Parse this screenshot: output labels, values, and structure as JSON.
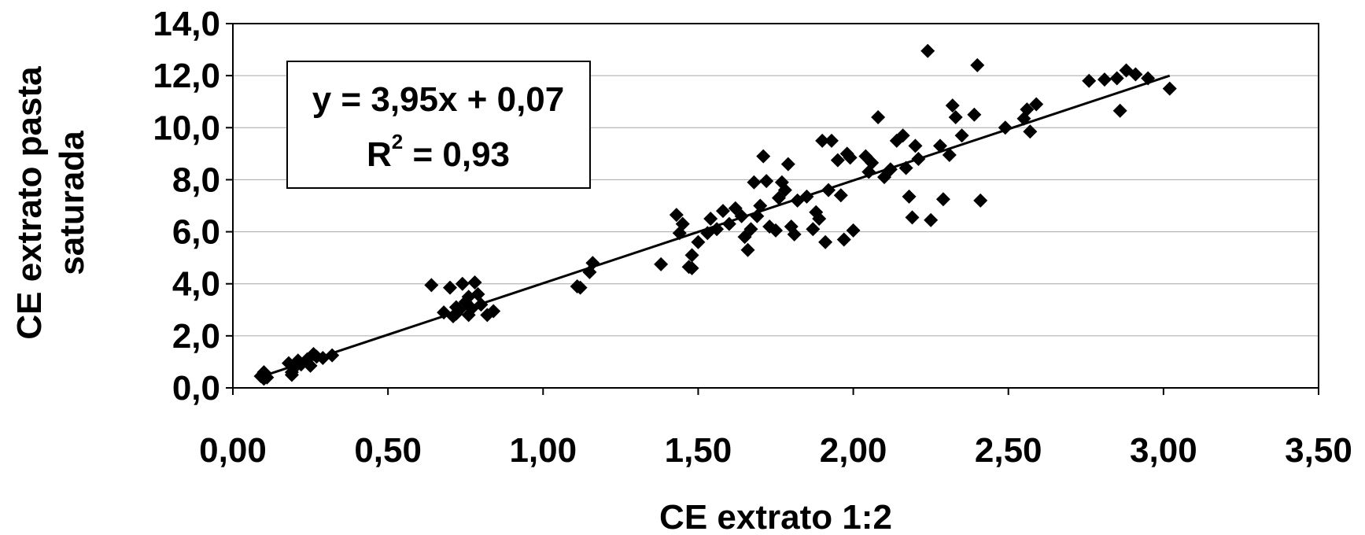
{
  "chart_data": {
    "type": "scatter",
    "xlabel": "CE extrato 1:2",
    "ylabel_lines": [
      "CE extrato pasta",
      "saturada"
    ],
    "xlim": [
      0,
      3.5
    ],
    "ylim": [
      0,
      14
    ],
    "x_ticks": [
      "0,00",
      "0,50",
      "1,00",
      "1,50",
      "2,00",
      "2,50",
      "3,00",
      "3,50"
    ],
    "y_ticks": [
      "0,0",
      "2,0",
      "4,0",
      "6,0",
      "8,0",
      "10,0",
      "12,0",
      "14,0"
    ],
    "grid": "horizontal",
    "marker": "diamond",
    "colors": {
      "points": "#000000",
      "trendline": "#000000",
      "grid": "#a6a6a6"
    },
    "annotation": {
      "equation": "y = 3,95x + 0,07",
      "r2_label": "R",
      "r2_exponent": "2",
      "r2_value": " = 0,93"
    },
    "trendline": {
      "slope": 3.95,
      "intercept": 0.07,
      "x_range": [
        0.09,
        3.02
      ]
    },
    "series": [
      {
        "points": [
          [
            0.09,
            0.45
          ],
          [
            0.1,
            0.55
          ],
          [
            0.1,
            0.35
          ],
          [
            0.11,
            0.4
          ],
          [
            0.1,
            0.6
          ],
          [
            0.18,
            0.95
          ],
          [
            0.19,
            0.6
          ],
          [
            0.2,
            0.8
          ],
          [
            0.21,
            1.05
          ],
          [
            0.22,
            0.9
          ],
          [
            0.24,
            1.1
          ],
          [
            0.25,
            0.85
          ],
          [
            0.26,
            1.3
          ],
          [
            0.27,
            1.2
          ],
          [
            0.29,
            1.15
          ],
          [
            0.32,
            1.25
          ],
          [
            0.19,
            0.5
          ],
          [
            0.64,
            3.95
          ],
          [
            0.68,
            2.9
          ],
          [
            0.7,
            3.85
          ],
          [
            0.71,
            2.75
          ],
          [
            0.72,
            3.1
          ],
          [
            0.73,
            3.0
          ],
          [
            0.74,
            4.0
          ],
          [
            0.75,
            3.3
          ],
          [
            0.76,
            3.5
          ],
          [
            0.76,
            2.8
          ],
          [
            0.78,
            4.05
          ],
          [
            0.79,
            3.6
          ],
          [
            0.8,
            3.2
          ],
          [
            0.82,
            2.8
          ],
          [
            0.84,
            2.95
          ],
          [
            0.72,
            2.85
          ],
          [
            0.77,
            3.05
          ],
          [
            1.11,
            3.9
          ],
          [
            1.12,
            3.85
          ],
          [
            1.15,
            4.45
          ],
          [
            1.16,
            4.8
          ],
          [
            1.38,
            4.75
          ],
          [
            1.43,
            6.65
          ],
          [
            1.44,
            5.95
          ],
          [
            1.45,
            6.3
          ],
          [
            1.47,
            4.65
          ],
          [
            1.48,
            5.1
          ],
          [
            1.48,
            4.6
          ],
          [
            1.5,
            5.6
          ],
          [
            1.53,
            5.95
          ],
          [
            1.54,
            6.5
          ],
          [
            1.56,
            6.1
          ],
          [
            1.58,
            6.8
          ],
          [
            1.6,
            6.3
          ],
          [
            1.62,
            6.9
          ],
          [
            1.64,
            6.6
          ],
          [
            1.65,
            5.8
          ],
          [
            1.66,
            5.3
          ],
          [
            1.67,
            6.1
          ],
          [
            1.68,
            7.9
          ],
          [
            1.69,
            6.6
          ],
          [
            1.7,
            7.0
          ],
          [
            1.71,
            8.9
          ],
          [
            1.72,
            7.95
          ],
          [
            1.73,
            6.2
          ],
          [
            1.75,
            6.05
          ],
          [
            1.76,
            7.3
          ],
          [
            1.77,
            7.9
          ],
          [
            1.78,
            7.6
          ],
          [
            1.79,
            8.6
          ],
          [
            1.8,
            6.2
          ],
          [
            1.81,
            5.9
          ],
          [
            1.82,
            7.2
          ],
          [
            1.85,
            7.35
          ],
          [
            1.87,
            6.1
          ],
          [
            1.88,
            6.75
          ],
          [
            1.89,
            6.5
          ],
          [
            1.9,
            9.5
          ],
          [
            1.91,
            5.6
          ],
          [
            1.92,
            7.6
          ],
          [
            1.93,
            9.5
          ],
          [
            1.95,
            8.75
          ],
          [
            1.96,
            7.4
          ],
          [
            1.97,
            5.7
          ],
          [
            1.98,
            9.0
          ],
          [
            1.99,
            8.85
          ],
          [
            2.0,
            6.05
          ],
          [
            2.04,
            8.9
          ],
          [
            2.05,
            8.3
          ],
          [
            2.06,
            8.65
          ],
          [
            2.08,
            10.4
          ],
          [
            2.1,
            8.1
          ],
          [
            2.12,
            8.4
          ],
          [
            2.14,
            9.5
          ],
          [
            2.16,
            9.7
          ],
          [
            2.17,
            8.45
          ],
          [
            2.18,
            7.35
          ],
          [
            2.19,
            6.55
          ],
          [
            2.2,
            9.3
          ],
          [
            2.21,
            8.8
          ],
          [
            2.24,
            12.95
          ],
          [
            2.25,
            6.45
          ],
          [
            2.28,
            9.3
          ],
          [
            2.29,
            7.25
          ],
          [
            2.31,
            8.95
          ],
          [
            2.32,
            10.85
          ],
          [
            2.33,
            10.4
          ],
          [
            2.35,
            9.7
          ],
          [
            2.39,
            10.5
          ],
          [
            2.4,
            12.4
          ],
          [
            2.41,
            7.2
          ],
          [
            2.49,
            10.0
          ],
          [
            2.55,
            10.35
          ],
          [
            2.56,
            10.7
          ],
          [
            2.57,
            9.85
          ],
          [
            2.59,
            10.9
          ],
          [
            2.76,
            11.8
          ],
          [
            2.81,
            11.85
          ],
          [
            2.85,
            11.9
          ],
          [
            2.86,
            10.65
          ],
          [
            2.88,
            12.2
          ],
          [
            2.91,
            12.05
          ],
          [
            2.95,
            11.9
          ],
          [
            3.02,
            11.5
          ]
        ]
      }
    ]
  }
}
